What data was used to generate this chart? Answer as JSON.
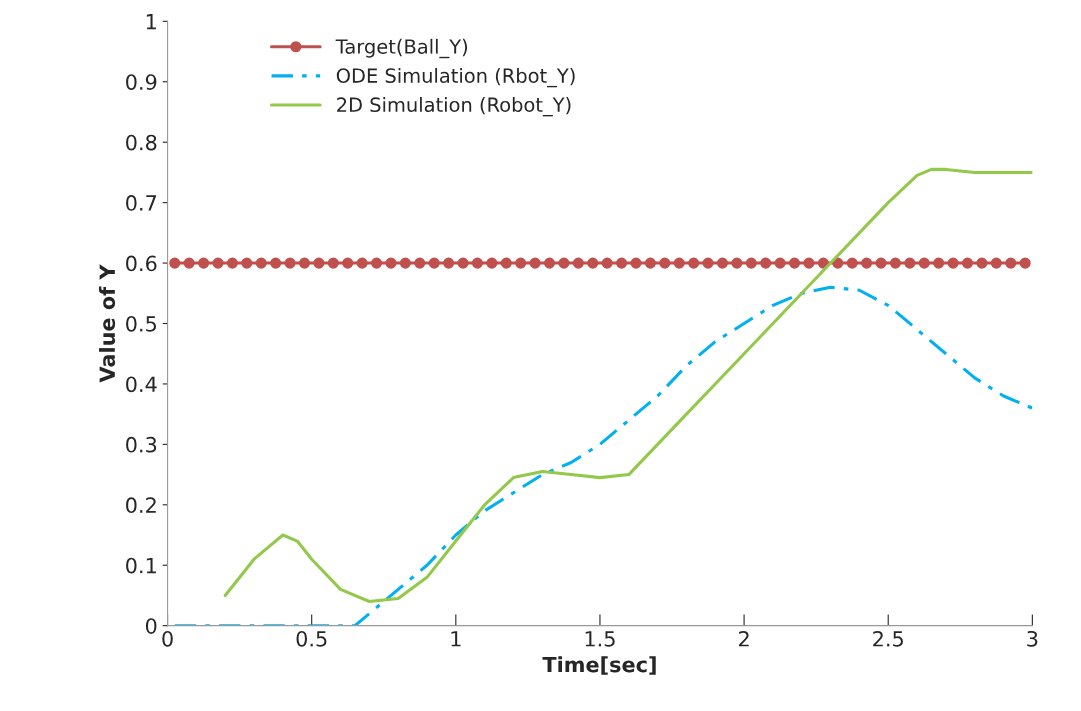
{
  "chart_data": {
    "type": "line",
    "xlabel": "Time[sec]",
    "ylabel": "Value of Y",
    "xlim": [
      0,
      3
    ],
    "ylim": [
      0,
      1
    ],
    "xticks": [
      0,
      0.5,
      1,
      1.5,
      2,
      2.5,
      3
    ],
    "yticks": [
      0,
      0.1,
      0.2,
      0.3,
      0.4,
      0.5,
      0.6,
      0.7,
      0.8,
      0.9,
      1
    ],
    "grid": false,
    "legend": "top left",
    "series": [
      {
        "name": "Target(Ball_Y)",
        "color": "#c0504d",
        "marker": "circle",
        "line_style": "solid",
        "x": [
          0.025,
          0.075,
          0.125,
          0.175,
          0.225,
          0.275,
          0.325,
          0.375,
          0.425,
          0.475,
          0.525,
          0.575,
          0.625,
          0.675,
          0.725,
          0.775,
          0.825,
          0.875,
          0.925,
          0.975,
          1.025,
          1.075,
          1.125,
          1.175,
          1.225,
          1.275,
          1.325,
          1.375,
          1.425,
          1.475,
          1.525,
          1.575,
          1.625,
          1.675,
          1.725,
          1.775,
          1.825,
          1.875,
          1.925,
          1.975,
          2.025,
          2.075,
          2.125,
          2.175,
          2.225,
          2.275,
          2.325,
          2.375,
          2.425,
          2.475,
          2.525,
          2.575,
          2.625,
          2.675,
          2.725,
          2.775,
          2.825,
          2.875,
          2.925,
          2.975
        ],
        "values": [
          0.6,
          0.6,
          0.6,
          0.6,
          0.6,
          0.6,
          0.6,
          0.6,
          0.6,
          0.6,
          0.6,
          0.6,
          0.6,
          0.6,
          0.6,
          0.6,
          0.6,
          0.6,
          0.6,
          0.6,
          0.6,
          0.6,
          0.6,
          0.6,
          0.6,
          0.6,
          0.6,
          0.6,
          0.6,
          0.6,
          0.6,
          0.6,
          0.6,
          0.6,
          0.6,
          0.6,
          0.6,
          0.6,
          0.6,
          0.6,
          0.6,
          0.6,
          0.6,
          0.6,
          0.6,
          0.6,
          0.6,
          0.6,
          0.6,
          0.6,
          0.6,
          0.6,
          0.6,
          0.6,
          0.6,
          0.6,
          0.6,
          0.6,
          0.6,
          0.6
        ]
      },
      {
        "name": "ODE Simulation (Rbot_Y)",
        "color": "#00b0f0",
        "marker": "none",
        "line_style": "dashdot",
        "x": [
          0.025,
          0.3,
          0.65,
          0.7,
          0.8,
          0.9,
          1.0,
          1.1,
          1.2,
          1.3,
          1.4,
          1.5,
          1.6,
          1.7,
          1.8,
          1.9,
          2.0,
          2.1,
          2.2,
          2.3,
          2.4,
          2.5,
          2.6,
          2.7,
          2.8,
          2.9,
          3.0
        ],
        "values": [
          0,
          0,
          0,
          0.02,
          0.06,
          0.1,
          0.15,
          0.19,
          0.22,
          0.25,
          0.27,
          0.3,
          0.34,
          0.38,
          0.43,
          0.47,
          0.5,
          0.53,
          0.55,
          0.56,
          0.555,
          0.53,
          0.49,
          0.45,
          0.41,
          0.38,
          0.36
        ]
      },
      {
        "name": "2D Simulation (Robot_Y)",
        "color": "#92c94a",
        "marker": "none",
        "line_style": "solid",
        "x": [
          0.2,
          0.3,
          0.4,
          0.45,
          0.5,
          0.6,
          0.7,
          0.8,
          0.9,
          1.0,
          1.1,
          1.2,
          1.3,
          1.4,
          1.5,
          1.6,
          1.7,
          1.8,
          1.9,
          2.0,
          2.1,
          2.2,
          2.3,
          2.4,
          2.5,
          2.6,
          2.65,
          2.7,
          2.8,
          3.0
        ],
        "values": [
          0.05,
          0.11,
          0.15,
          0.14,
          0.11,
          0.06,
          0.04,
          0.045,
          0.08,
          0.14,
          0.2,
          0.245,
          0.255,
          0.25,
          0.245,
          0.25,
          0.3,
          0.35,
          0.4,
          0.45,
          0.5,
          0.55,
          0.6,
          0.65,
          0.7,
          0.745,
          0.755,
          0.755,
          0.75,
          0.75
        ]
      }
    ]
  }
}
